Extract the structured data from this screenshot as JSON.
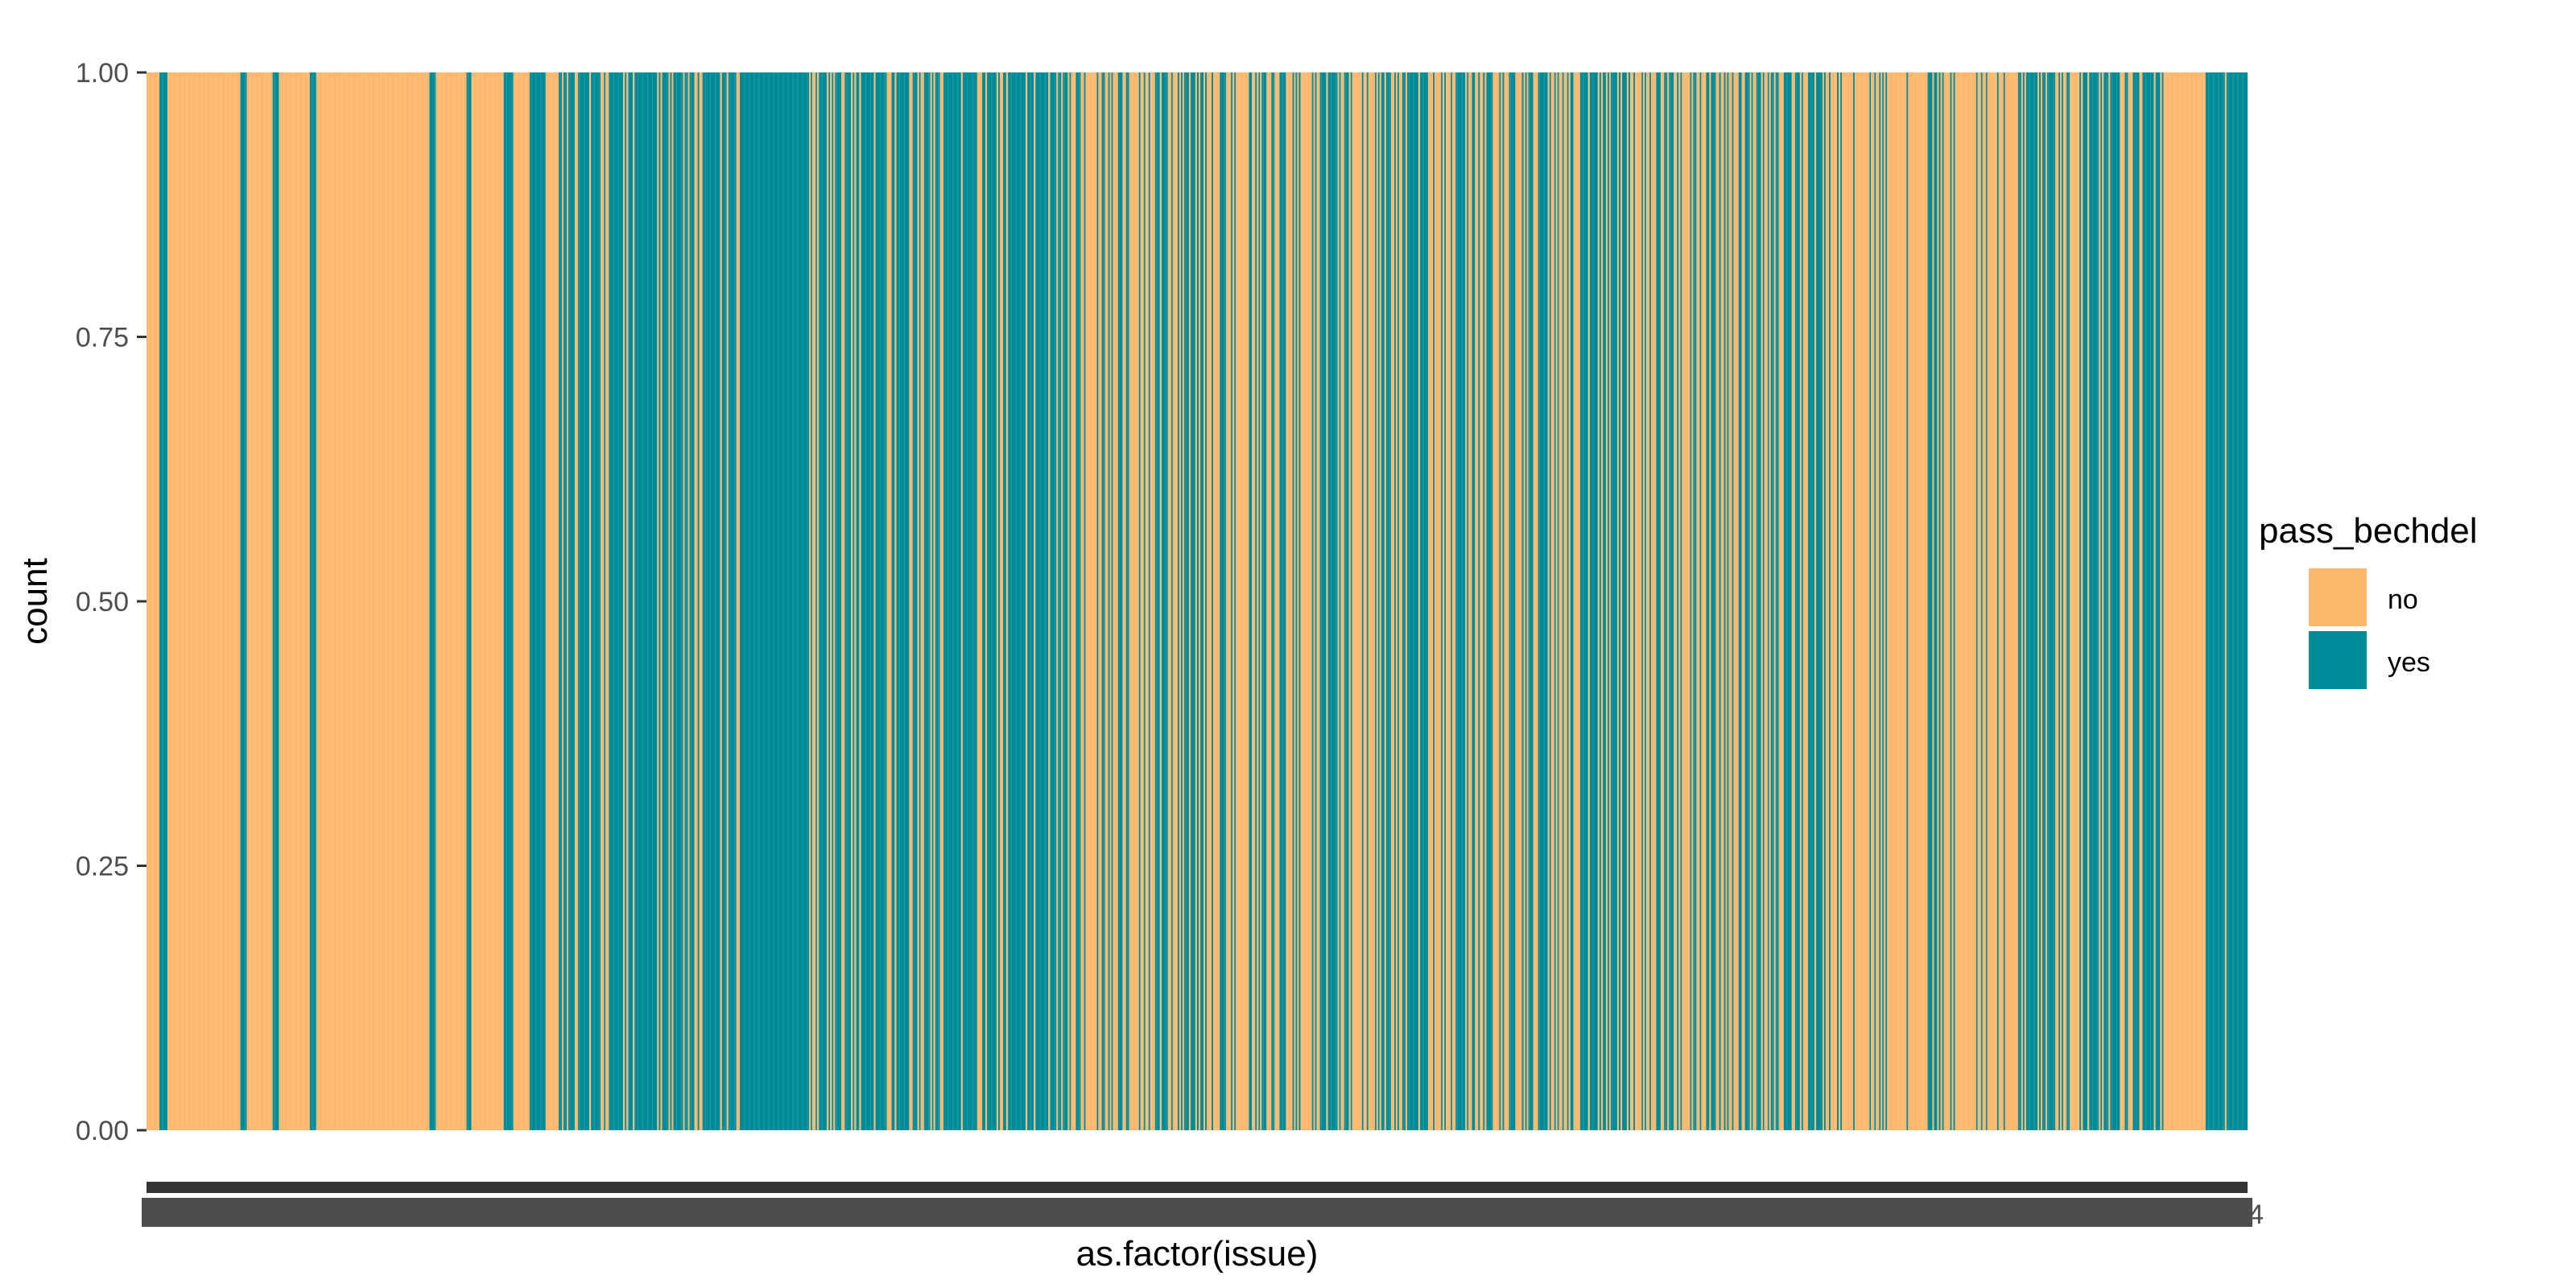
{
  "chart_data": {
    "type": "bar",
    "stacked": true,
    "xlabel": "as.factor(issue)",
    "ylabel": "count",
    "ylim": [
      0,
      1
    ],
    "y_ticks": [
      "0.00",
      "0.25",
      "0.50",
      "0.75",
      "1.00"
    ],
    "x_categories_count": 1300,
    "x_first_tick_label": "1",
    "x_last_tick_label": "1304",
    "grid": false,
    "legend": {
      "title": "pass_bechdel",
      "position": "right",
      "entries": [
        {
          "label": "no",
          "color": "#fdb86e"
        },
        {
          "label": "yes",
          "color": "#008b99"
        }
      ]
    },
    "series_colors": {
      "no": "#fdb86e",
      "yes": "#008b99"
    },
    "segments": [
      {
        "range": [
          0.0,
          0.006
        ],
        "value": "no"
      },
      {
        "range": [
          0.006,
          0.01
        ],
        "value": "yes"
      },
      {
        "range": [
          0.01,
          0.045
        ],
        "value": "no"
      },
      {
        "range": [
          0.045,
          0.048
        ],
        "value": "yes"
      },
      {
        "range": [
          0.048,
          0.06
        ],
        "value": "no"
      },
      {
        "range": [
          0.06,
          0.063
        ],
        "value": "yes"
      },
      {
        "range": [
          0.063,
          0.078
        ],
        "value": "no"
      },
      {
        "range": [
          0.078,
          0.081
        ],
        "value": "yes"
      },
      {
        "range": [
          0.081,
          0.135
        ],
        "value": "no"
      },
      {
        "range": [
          0.135,
          0.138
        ],
        "value": "yes"
      },
      {
        "range": [
          0.138,
          0.152
        ],
        "value": "no"
      },
      {
        "range": [
          0.152,
          0.155
        ],
        "value": "yes"
      },
      {
        "range": [
          0.155,
          0.17
        ],
        "value": "no"
      },
      {
        "range": [
          0.17,
          0.175
        ],
        "value": "yes"
      },
      {
        "range": [
          0.175,
          0.182
        ],
        "value": "no"
      },
      {
        "range": [
          0.182,
          0.19
        ],
        "value": "yes"
      },
      {
        "range": [
          0.19,
          0.196
        ],
        "value": "no"
      },
      {
        "range": [
          0.196,
          0.44
        ],
        "value": "mixed",
        "yes_share": 0.78
      },
      {
        "range": [
          0.44,
          0.48
        ],
        "value": "mixed",
        "yes_share": 0.3
      },
      {
        "range": [
          0.48,
          0.56
        ],
        "value": "mixed",
        "yes_share": 0.5
      },
      {
        "range": [
          0.56,
          0.8
        ],
        "value": "mixed",
        "yes_share": 0.55
      },
      {
        "range": [
          0.8,
          0.89
        ],
        "value": "mixed",
        "yes_share": 0.3
      },
      {
        "range": [
          0.89,
          0.96
        ],
        "value": "mixed",
        "yes_share": 0.72
      },
      {
        "range": [
          0.96,
          0.98
        ],
        "value": "no"
      },
      {
        "range": [
          0.98,
          1.0
        ],
        "value": "mixed",
        "yes_share": 0.85
      }
    ]
  }
}
